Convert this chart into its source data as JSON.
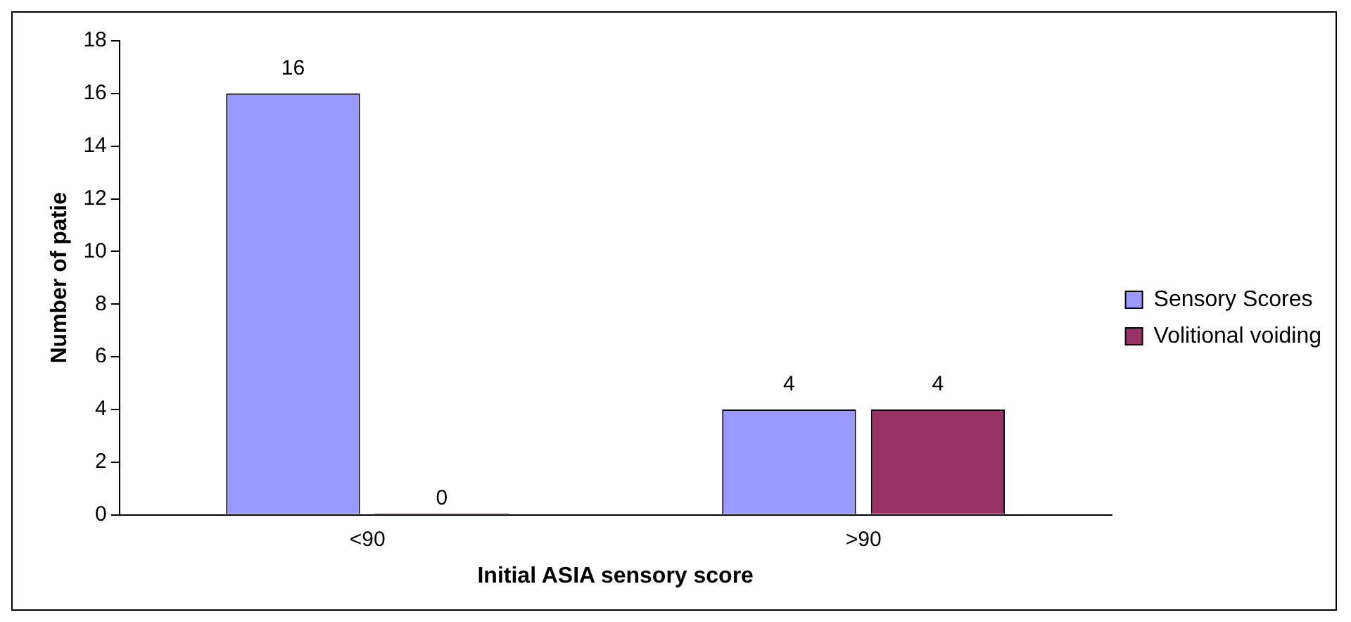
{
  "chart_data": {
    "type": "bar",
    "xlabel": "Initial ASIA sensory score",
    "ylabel": "Number of patie",
    "categories": [
      "<90",
      ">90"
    ],
    "series": [
      {
        "name": "Sensory Scores",
        "color": "#9999ff",
        "values": [
          16,
          4
        ]
      },
      {
        "name": "Volitional voiding",
        "color": "#993366",
        "values": [
          0,
          4
        ]
      }
    ],
    "ylim": [
      0,
      18
    ],
    "yticks": [
      0,
      2,
      4,
      6,
      8,
      10,
      12,
      14,
      16,
      18
    ],
    "grid": false,
    "legend": "right",
    "data_labels": true
  }
}
